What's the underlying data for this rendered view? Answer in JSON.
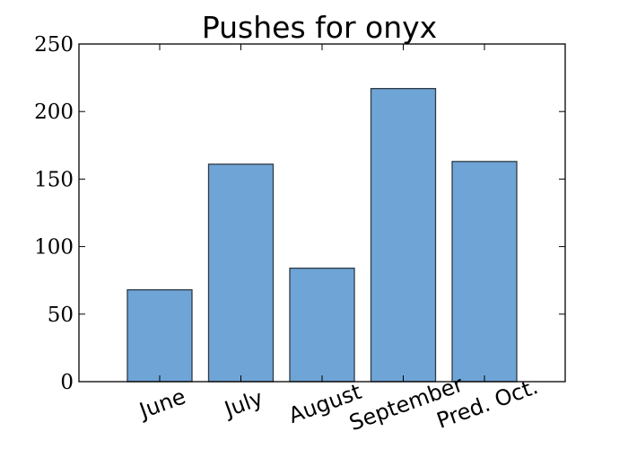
{
  "chart_data": {
    "type": "bar",
    "title": "Pushes for onyx",
    "xlabel": "",
    "ylabel": "",
    "categories": [
      "June",
      "July",
      "August",
      "September",
      "Pred. Oct."
    ],
    "values": [
      68,
      161,
      84,
      217,
      163
    ],
    "ylim": [
      0,
      250
    ],
    "yticks": [
      0,
      50,
      100,
      150,
      200,
      250
    ],
    "ytick_labels": [
      "0",
      "50",
      "100",
      "150",
      "200",
      "250"
    ],
    "xtick_rotation_deg": -20,
    "grid": false,
    "legend": "none",
    "colors": {
      "bar_fill": "#6fa5d6",
      "bar_edge": "#2f3b44",
      "axis": "#000000",
      "background": "#ffffff"
    }
  }
}
